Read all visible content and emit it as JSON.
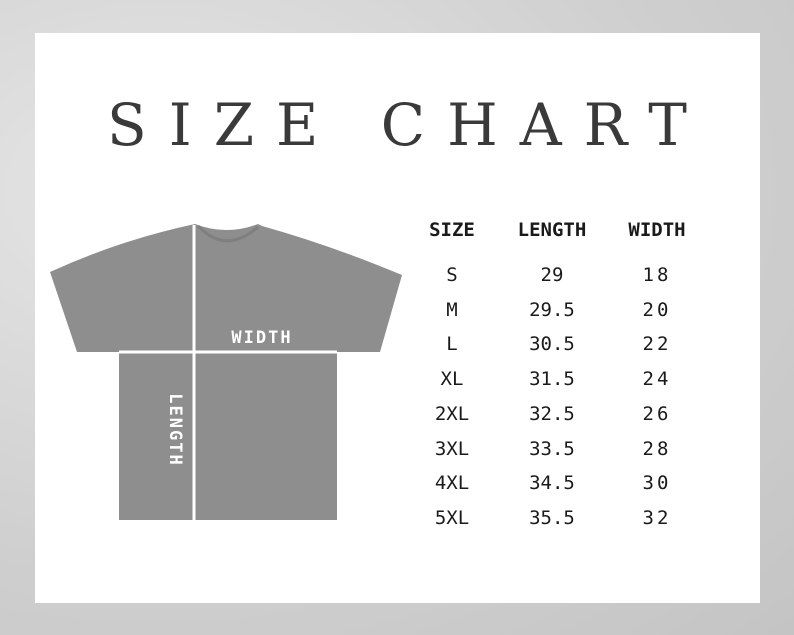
{
  "title": "SIZE CHART",
  "diagram": {
    "width_label": "WIDTH",
    "length_label": "LENGTH",
    "shirt_color": "#8e8e8e"
  },
  "table": {
    "headers": [
      "SIZE",
      "LENGTH",
      "WIDTH"
    ],
    "rows": [
      [
        "S",
        "29",
        "18"
      ],
      [
        "M",
        "29.5",
        "20"
      ],
      [
        "L",
        "30.5",
        "22"
      ],
      [
        "XL",
        "31.5",
        "24"
      ],
      [
        "2XL",
        "32.5",
        "26"
      ],
      [
        "3XL",
        "33.5",
        "28"
      ],
      [
        "4XL",
        "34.5",
        "30"
      ],
      [
        "5XL",
        "35.5",
        "32"
      ]
    ]
  }
}
